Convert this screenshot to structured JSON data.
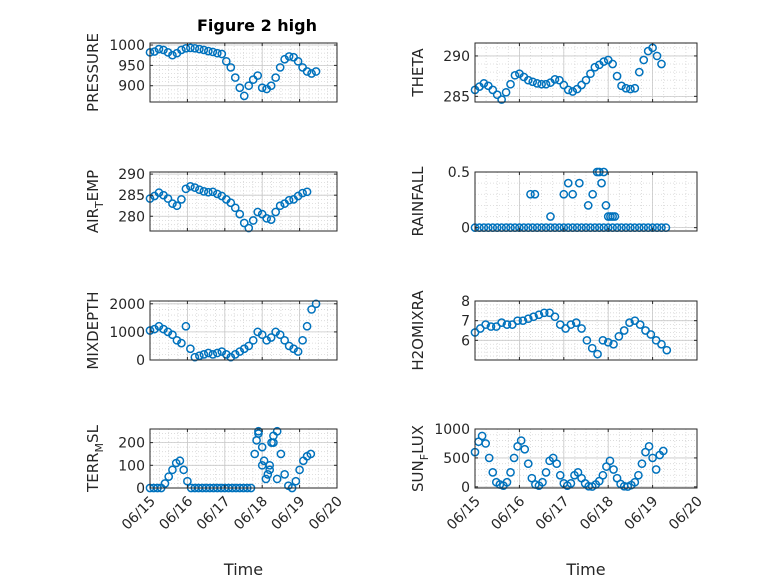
{
  "figure_title": "Figure 2 high",
  "marker_color": "#0072BD",
  "chart_data": [
    {
      "id": "pressure",
      "type": "scatter",
      "ylabel_main": "PRESSURE",
      "ylabel_sub": "",
      "ylabel_tail": "",
      "xlim": [
        0,
        5
      ],
      "ylim": [
        860,
        1005
      ],
      "yticks": [
        900,
        950,
        1000
      ],
      "yticklabels": [
        "900",
        "950",
        "1000"
      ],
      "x": [
        0.0,
        0.12,
        0.24,
        0.36,
        0.48,
        0.6,
        0.72,
        0.84,
        0.96,
        1.08,
        1.2,
        1.32,
        1.44,
        1.56,
        1.68,
        1.8,
        1.92,
        2.04,
        2.16,
        2.28,
        2.4,
        2.52,
        2.64,
        2.76,
        2.88,
        3.0,
        3.12,
        3.24,
        3.36,
        3.48,
        3.6,
        3.72,
        3.84,
        3.96,
        4.08,
        4.2,
        4.32,
        4.44
      ],
      "y": [
        982,
        984,
        990,
        988,
        982,
        975,
        980,
        988,
        992,
        993,
        992,
        990,
        988,
        985,
        983,
        980,
        978,
        960,
        945,
        920,
        895,
        875,
        900,
        915,
        925,
        895,
        892,
        900,
        920,
        945,
        965,
        972,
        970,
        960,
        945,
        935,
        930,
        935
      ]
    },
    {
      "id": "theta",
      "type": "scatter",
      "ylabel_main": "THETA",
      "ylabel_sub": "",
      "ylabel_tail": "",
      "xlim": [
        0,
        5
      ],
      "ylim": [
        284.3,
        291.6
      ],
      "yticks": [
        285,
        290
      ],
      "yticklabels": [
        "285",
        "290"
      ],
      "x": [
        0.0,
        0.1,
        0.2,
        0.3,
        0.4,
        0.5,
        0.6,
        0.7,
        0.8,
        0.9,
        1.0,
        1.1,
        1.2,
        1.3,
        1.4,
        1.5,
        1.6,
        1.7,
        1.8,
        1.9,
        2.0,
        2.1,
        2.2,
        2.3,
        2.4,
        2.5,
        2.6,
        2.7,
        2.8,
        2.9,
        3.0,
        3.1,
        3.2,
        3.3,
        3.4,
        3.5,
        3.6,
        3.7,
        3.8,
        3.9,
        4.0,
        4.1,
        4.2
      ],
      "y": [
        285.8,
        286.2,
        286.6,
        286.3,
        285.8,
        285.2,
        284.6,
        285.5,
        286.5,
        287.6,
        287.8,
        287.4,
        287.0,
        286.8,
        286.6,
        286.5,
        286.5,
        286.7,
        287.1,
        287.0,
        286.4,
        285.8,
        285.6,
        285.9,
        286.4,
        287.0,
        287.8,
        288.6,
        288.9,
        289.3,
        289.5,
        289.0,
        287.5,
        286.3,
        286.0,
        285.9,
        286.0,
        288.0,
        289.5,
        290.6,
        291.0,
        290.0,
        289.0
      ]
    },
    {
      "id": "air_temp",
      "type": "scatter",
      "ylabel_main": "AIR",
      "ylabel_sub": "T",
      "ylabel_tail": "EMP",
      "xlim": [
        0,
        5
      ],
      "ylim": [
        276.5,
        290.5
      ],
      "yticks": [
        280,
        285,
        290
      ],
      "yticklabels": [
        "280",
        "285",
        "290"
      ],
      "x": [
        0.0,
        0.12,
        0.24,
        0.36,
        0.48,
        0.6,
        0.72,
        0.84,
        0.96,
        1.08,
        1.2,
        1.32,
        1.44,
        1.56,
        1.68,
        1.8,
        1.92,
        2.04,
        2.16,
        2.28,
        2.4,
        2.52,
        2.64,
        2.76,
        2.88,
        3.0,
        3.12,
        3.24,
        3.36,
        3.48,
        3.6,
        3.72,
        3.84,
        3.96,
        4.08,
        4.2
      ],
      "y": [
        284.2,
        284.8,
        285.6,
        285.0,
        284.2,
        283.0,
        282.5,
        284.0,
        286.5,
        287.1,
        286.8,
        286.3,
        285.9,
        285.7,
        285.8,
        285.3,
        284.8,
        284.0,
        283.2,
        282.0,
        280.5,
        278.4,
        277.2,
        279.0,
        281.0,
        280.5,
        279.5,
        279.2,
        281.0,
        282.5,
        283.0,
        283.8,
        284.0,
        284.8,
        285.5,
        285.8
      ]
    },
    {
      "id": "rainfall",
      "type": "scatter",
      "ylabel_main": "RAINFALL",
      "ylabel_sub": "",
      "ylabel_tail": "",
      "xlim": [
        0,
        5
      ],
      "ylim": [
        -0.03,
        0.5
      ],
      "yticks": [
        0,
        0.5
      ],
      "yticklabels": [
        "0",
        "0.5"
      ],
      "x": [
        0.0,
        0.1,
        0.2,
        0.3,
        0.4,
        0.5,
        0.6,
        0.7,
        0.8,
        0.9,
        1.0,
        1.1,
        1.2,
        1.3,
        1.4,
        1.5,
        1.6,
        1.7,
        1.8,
        1.9,
        2.0,
        2.1,
        2.2,
        2.3,
        2.4,
        2.5,
        2.6,
        2.7,
        2.8,
        2.9,
        3.0,
        3.1,
        3.2,
        3.3,
        3.4,
        3.5,
        3.6,
        3.7,
        3.8,
        3.9,
        4.0,
        4.1,
        4.2,
        4.3,
        1.25,
        1.35,
        1.7,
        2.0,
        2.1,
        2.2,
        2.35,
        2.55,
        2.65,
        2.75,
        2.8,
        2.85,
        2.9,
        2.95,
        3.0,
        3.05,
        3.1,
        3.15
      ],
      "y": [
        0,
        0,
        0,
        0,
        0,
        0,
        0,
        0,
        0,
        0,
        0,
        0,
        0,
        0,
        0,
        0,
        0,
        0,
        0,
        0,
        0,
        0,
        0,
        0,
        0,
        0,
        0,
        0,
        0,
        0,
        0,
        0,
        0,
        0,
        0,
        0,
        0,
        0,
        0,
        0,
        0,
        0,
        0,
        0,
        0.3,
        0.3,
        0.1,
        0.3,
        0.4,
        0.3,
        0.4,
        0.2,
        0.3,
        0.5,
        0.5,
        0.4,
        0.5,
        0.2,
        0.1,
        0.1,
        0.1,
        0.1
      ]
    },
    {
      "id": "mixdepth",
      "type": "scatter",
      "ylabel_main": "MIXDEPTH",
      "ylabel_sub": "",
      "ylabel_tail": "",
      "xlim": [
        0,
        5
      ],
      "ylim": [
        0,
        2100
      ],
      "yticks": [
        0,
        1000,
        2000
      ],
      "yticklabels": [
        "0",
        "1000",
        "2000"
      ],
      "x": [
        0.0,
        0.12,
        0.24,
        0.36,
        0.48,
        0.6,
        0.72,
        0.84,
        0.96,
        1.08,
        1.2,
        1.32,
        1.44,
        1.56,
        1.68,
        1.8,
        1.92,
        2.04,
        2.16,
        2.28,
        2.4,
        2.52,
        2.64,
        2.76,
        2.88,
        3.0,
        3.12,
        3.24,
        3.36,
        3.48,
        3.6,
        3.72,
        3.84,
        3.96,
        4.08,
        4.2,
        4.32,
        4.44
      ],
      "y": [
        1050,
        1100,
        1200,
        1100,
        1000,
        900,
        700,
        600,
        1200,
        400,
        100,
        150,
        200,
        250,
        200,
        250,
        300,
        200,
        100,
        200,
        300,
        400,
        500,
        700,
        1000,
        900,
        700,
        800,
        1000,
        900,
        700,
        500,
        400,
        300,
        700,
        1200,
        1800,
        2000
      ]
    },
    {
      "id": "h2omixra",
      "type": "scatter",
      "ylabel_main": "H2OMIXRA",
      "ylabel_sub": "",
      "ylabel_tail": "",
      "xlim": [
        0,
        5
      ],
      "ylim": [
        5.0,
        8.0
      ],
      "yticks": [
        6,
        7,
        8
      ],
      "yticklabels": [
        "6",
        "7",
        "8"
      ],
      "x": [
        0.0,
        0.12,
        0.24,
        0.36,
        0.48,
        0.6,
        0.72,
        0.84,
        0.96,
        1.08,
        1.2,
        1.32,
        1.44,
        1.56,
        1.68,
        1.8,
        1.92,
        2.04,
        2.16,
        2.28,
        2.4,
        2.52,
        2.64,
        2.76,
        2.88,
        3.0,
        3.12,
        3.24,
        3.36,
        3.48,
        3.6,
        3.72,
        3.84,
        3.96,
        4.08,
        4.2,
        4.32
      ],
      "y": [
        6.4,
        6.6,
        6.8,
        6.7,
        6.7,
        6.9,
        6.8,
        6.8,
        7.0,
        7.0,
        7.1,
        7.2,
        7.3,
        7.4,
        7.4,
        7.2,
        6.8,
        6.6,
        6.8,
        6.9,
        6.6,
        6.0,
        5.6,
        5.3,
        6.0,
        5.9,
        5.8,
        6.2,
        6.5,
        6.9,
        7.0,
        6.8,
        6.5,
        6.3,
        6.0,
        5.8,
        5.5
      ]
    },
    {
      "id": "terr_msl",
      "type": "scatter",
      "ylabel_main": "TERR",
      "ylabel_sub": "M",
      "ylabel_tail": "SL",
      "xlim": [
        0,
        5
      ],
      "ylim": [
        0,
        260
      ],
      "yticks": [
        0,
        100,
        200
      ],
      "yticklabels": [
        "0",
        "100",
        "200"
      ],
      "x": [
        0.0,
        0.1,
        0.2,
        0.3,
        0.4,
        0.5,
        0.6,
        0.7,
        0.8,
        0.9,
        1.0,
        1.1,
        1.2,
        1.3,
        1.4,
        1.5,
        1.6,
        1.7,
        1.8,
        1.9,
        2.0,
        2.1,
        2.2,
        2.3,
        2.4,
        2.5,
        2.6,
        2.7,
        2.8,
        2.9,
        3.0,
        3.1,
        3.2,
        3.3,
        3.4,
        3.5,
        3.6,
        3.7,
        3.8,
        3.9,
        4.0,
        4.1,
        4.2,
        4.3,
        2.85,
        2.9,
        3.0,
        3.05,
        3.15,
        3.2,
        3.25,
        3.3,
        3.4
      ],
      "y": [
        0,
        0,
        0,
        0,
        20,
        50,
        80,
        110,
        120,
        80,
        30,
        0,
        0,
        0,
        0,
        0,
        0,
        0,
        0,
        0,
        0,
        0,
        0,
        0,
        0,
        0,
        0,
        0,
        150,
        250,
        100,
        40,
        80,
        200,
        250,
        150,
        60,
        10,
        0,
        30,
        80,
        120,
        140,
        150,
        210,
        240,
        180,
        120,
        60,
        100,
        200,
        230,
        40
      ]
    },
    {
      "id": "sun_flux",
      "type": "scatter",
      "ylabel_main": "SUN",
      "ylabel_sub": "F",
      "ylabel_tail": "LUX",
      "xlim": [
        0,
        5
      ],
      "ylim": [
        -20,
        1000
      ],
      "yticks": [
        0,
        500,
        1000
      ],
      "yticklabels": [
        "0",
        "500",
        "1000"
      ],
      "x": [
        0.0,
        0.08,
        0.16,
        0.24,
        0.32,
        0.4,
        0.48,
        0.56,
        0.64,
        0.72,
        0.8,
        0.88,
        0.96,
        1.04,
        1.12,
        1.2,
        1.28,
        1.36,
        1.44,
        1.52,
        1.6,
        1.68,
        1.76,
        1.84,
        1.92,
        2.0,
        2.08,
        2.16,
        2.24,
        2.32,
        2.4,
        2.48,
        2.56,
        2.64,
        2.72,
        2.8,
        2.88,
        2.96,
        3.04,
        3.12,
        3.2,
        3.28,
        3.36,
        3.44,
        3.52,
        3.6,
        3.68,
        3.76,
        3.84,
        3.92,
        4.0,
        4.08,
        4.16,
        4.24
      ],
      "y": [
        600,
        780,
        880,
        750,
        500,
        250,
        80,
        40,
        20,
        80,
        250,
        500,
        700,
        800,
        650,
        400,
        150,
        40,
        20,
        80,
        250,
        450,
        500,
        400,
        200,
        60,
        20,
        60,
        200,
        250,
        150,
        60,
        10,
        5,
        40,
        100,
        200,
        350,
        450,
        300,
        150,
        50,
        10,
        5,
        30,
        80,
        200,
        400,
        600,
        700,
        500,
        300,
        550,
        620
      ]
    }
  ],
  "shared_x": {
    "xticks": [
      0,
      1,
      2,
      3,
      4,
      5
    ],
    "xticklabels": [
      "06/15",
      "06/16",
      "06/17",
      "06/18",
      "06/19",
      "06/20"
    ],
    "xlabel": "Time"
  }
}
